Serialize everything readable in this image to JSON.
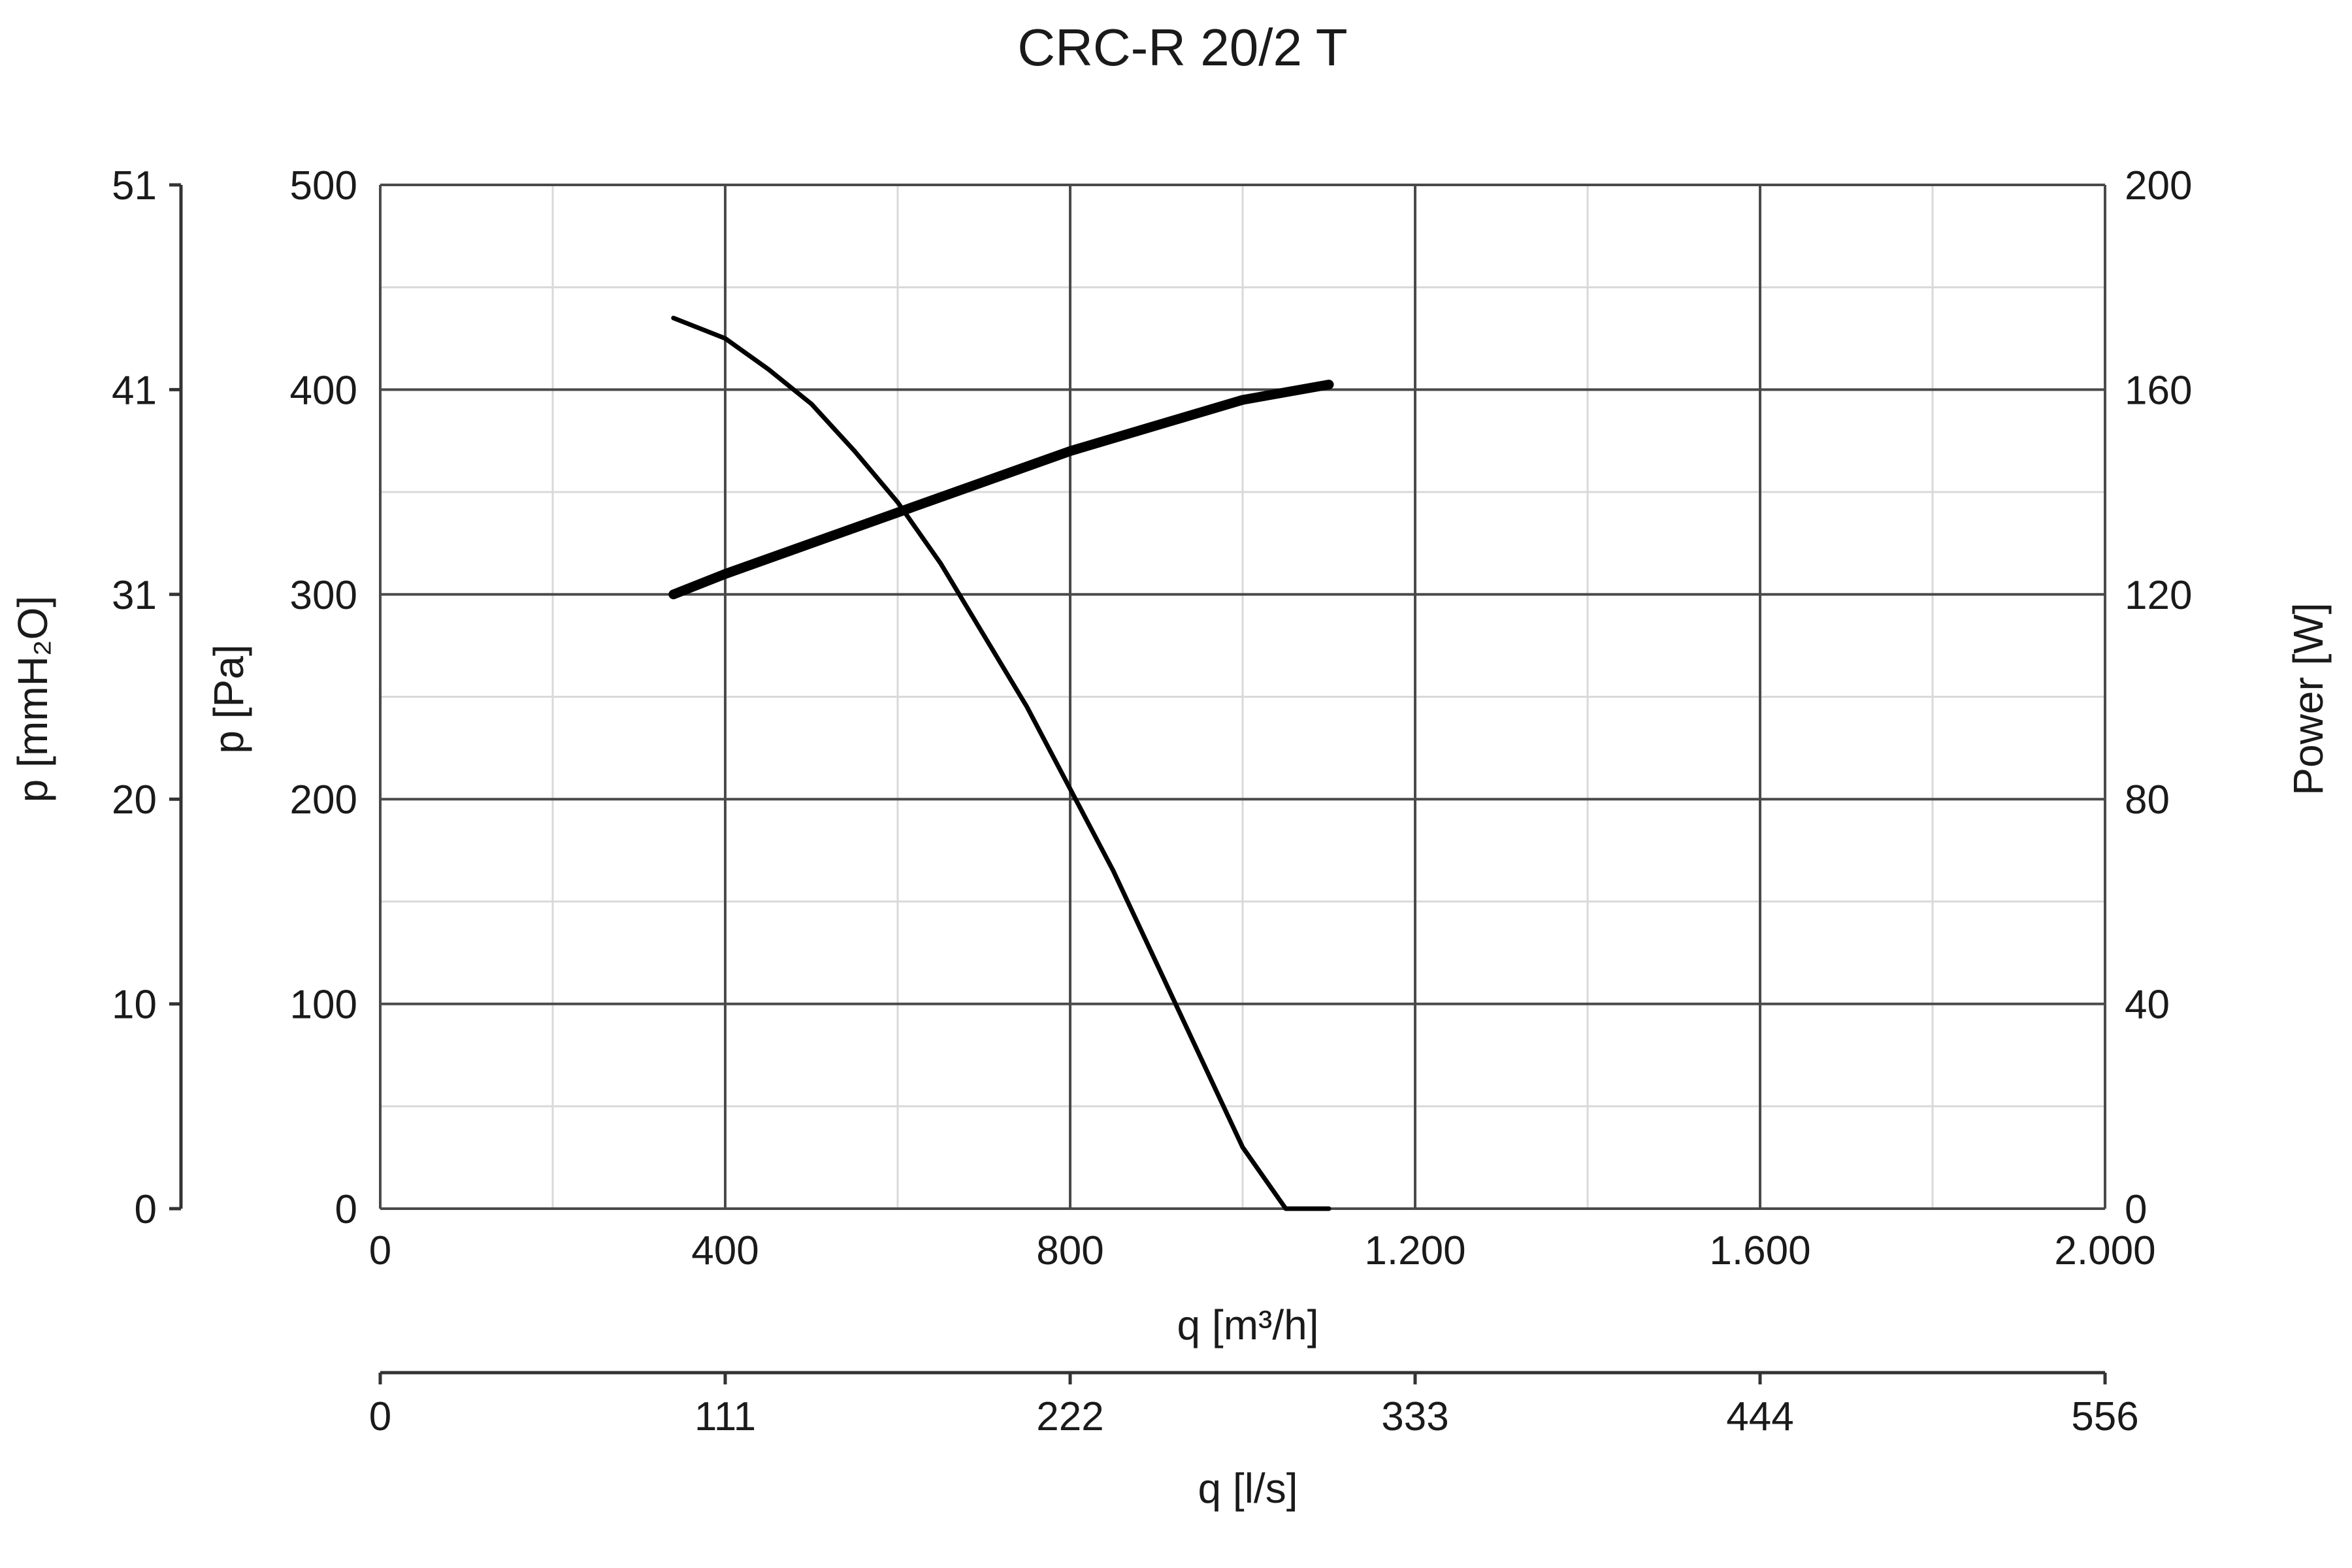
{
  "chart_data": {
    "type": "line",
    "title": "CRC-R 20/2 T",
    "x_axis": {
      "label": "q [m³/h]",
      "range": [
        0,
        2000
      ],
      "ticks": [
        0,
        400,
        800,
        1200,
        1600,
        2000
      ],
      "tick_labels": [
        "0",
        "400",
        "800",
        "1.200",
        "1.600",
        "2.000"
      ]
    },
    "x2_axis": {
      "label": "q [l/s]",
      "tick_labels": [
        "0",
        "111",
        "222",
        "333",
        "444",
        "556"
      ]
    },
    "y_axis": {
      "label": "p [Pa]",
      "range": [
        0,
        500
      ],
      "ticks": [
        0,
        100,
        200,
        300,
        400,
        500
      ],
      "tick_labels": [
        "0",
        "100",
        "200",
        "300",
        "400",
        "500"
      ]
    },
    "y_left2_axis": {
      "label": "p [mmH₂O]",
      "tick_labels": [
        "0",
        "10",
        "20",
        "31",
        "41",
        "51"
      ]
    },
    "y_right_axis": {
      "label": "Power [W]",
      "range": [
        0,
        200
      ],
      "tick_labels": [
        "0",
        "40",
        "80",
        "120",
        "160",
        "200"
      ]
    },
    "grid": true,
    "series": [
      {
        "axis": "left",
        "color": "#000000",
        "x": [
          340,
          400,
          450,
          500,
          550,
          600,
          650,
          700,
          750,
          800,
          850,
          900,
          950,
          1000,
          1050,
          1100
        ],
        "y": [
          435,
          425,
          410,
          393,
          370,
          345,
          315,
          280,
          245,
          205,
          165,
          120,
          75,
          30,
          0,
          0
        ]
      },
      {
        "axis": "right",
        "color": "#000000",
        "x": [
          340,
          400,
          500,
          600,
          700,
          800,
          900,
          1000,
          1100
        ],
        "y": [
          120,
          124,
          130,
          136,
          142,
          148,
          153,
          158,
          161
        ]
      }
    ]
  }
}
